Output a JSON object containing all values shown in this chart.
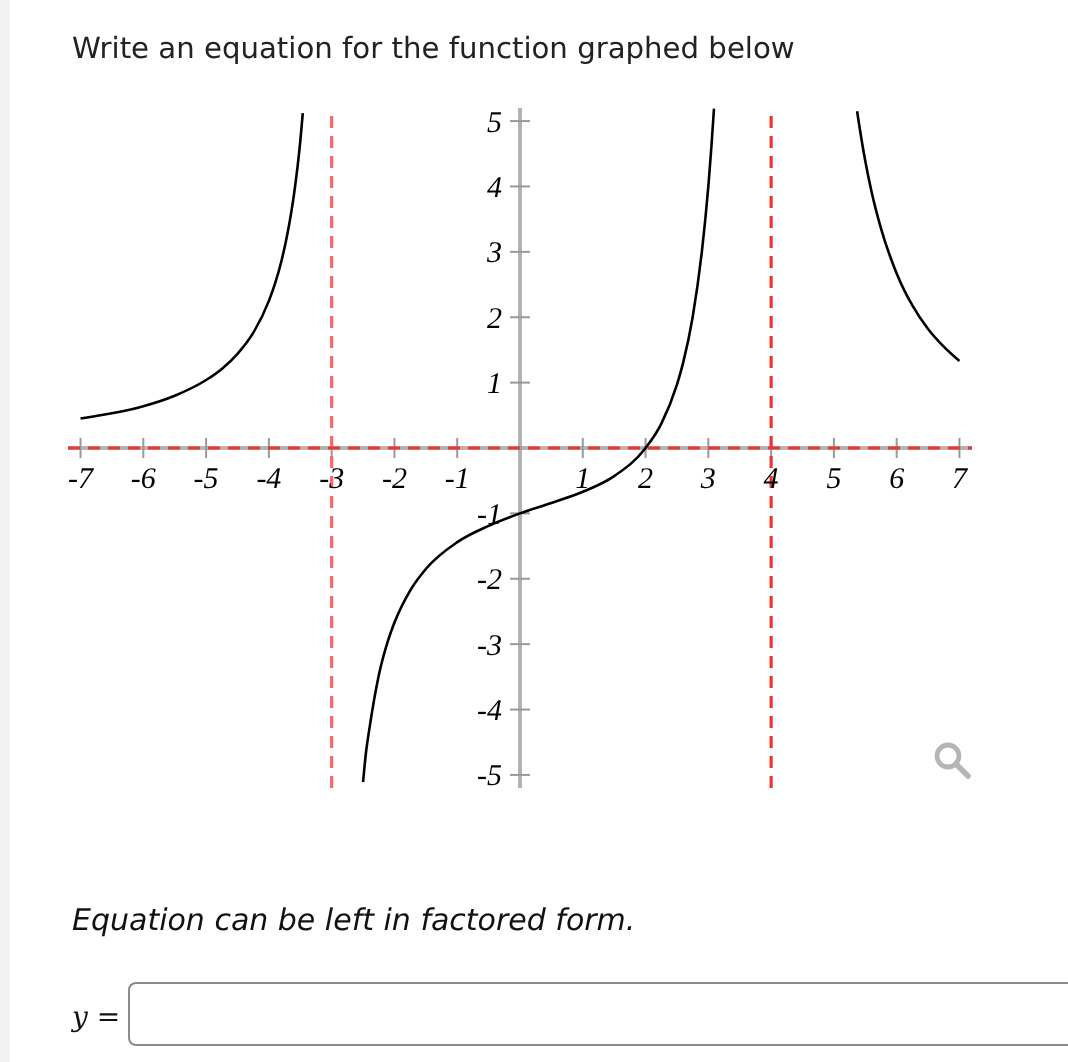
{
  "chart_data": {
    "type": "line",
    "title": "Write an equation for the function graphed below",
    "annotations": [
      "Equation can be left in factored form.",
      "y ="
    ],
    "series": [
      {
        "color": "#000000",
        "x": [
          -7,
          -6.5,
          -6,
          -5.5,
          -5,
          -4.75,
          -4.5,
          -4.25,
          -4,
          -3.9,
          -3.8,
          -3.7,
          -3.6,
          -3.5,
          -3.46
        ],
        "values": [
          0.45,
          0.53,
          0.64,
          0.8,
          1.04,
          1.21,
          1.44,
          1.76,
          2.25,
          2.52,
          2.86,
          3.3,
          3.88,
          4.69,
          5.12
        ]
      },
      {
        "color": "#000000",
        "x": [
          -2.5,
          -2.45,
          -2.4,
          -2.25,
          -2.1,
          -2,
          -1.75,
          -1.5,
          -1,
          -0.5,
          0,
          0.5,
          1,
          1.5,
          2,
          2.25,
          2.5,
          2.6,
          2.75,
          2.9,
          2.95,
          3,
          3.05,
          3.09
        ],
        "values": [
          -5.11,
          -4.63,
          -4.3,
          -3.48,
          -2.94,
          -2.67,
          -2.18,
          -1.85,
          -1.44,
          -1.19,
          -1,
          -0.84,
          -0.67,
          -0.43,
          0,
          0.37,
          0.97,
          1.31,
          2,
          3.03,
          3.48,
          4,
          4.62,
          5.19
        ]
      },
      {
        "color": "#000000",
        "x": [
          5.37,
          5.4,
          5.45,
          5.5,
          5.6,
          5.75,
          6,
          6.25,
          6.5,
          6.75,
          7
        ],
        "values": [
          5.15,
          4.96,
          4.66,
          4.39,
          3.92,
          3.36,
          2.67,
          2.18,
          1.82,
          1.55,
          1.33
        ]
      }
    ],
    "xlim": [
      -7.2,
      7.2
    ],
    "ylim": [
      -5.2,
      5.2
    ],
    "xticks": [
      -7,
      -6,
      -5,
      -4,
      -3,
      -2,
      -1,
      1,
      2,
      3,
      4,
      5,
      6,
      7
    ],
    "yticks": [
      -5,
      -4,
      -3,
      -2,
      -1,
      1,
      2,
      3,
      4,
      5
    ],
    "ref_lines": [
      {
        "axis": "x",
        "value": -3,
        "color": "#ff6666",
        "line_style": "dashed"
      },
      {
        "axis": "x",
        "value": 4,
        "color": "#ee3333",
        "line_style": "dashed"
      },
      {
        "axis": "y",
        "value": 0,
        "color": "#ee3333",
        "line_style": "dashed"
      }
    ],
    "marker": "none",
    "line_style": "solid"
  }
}
